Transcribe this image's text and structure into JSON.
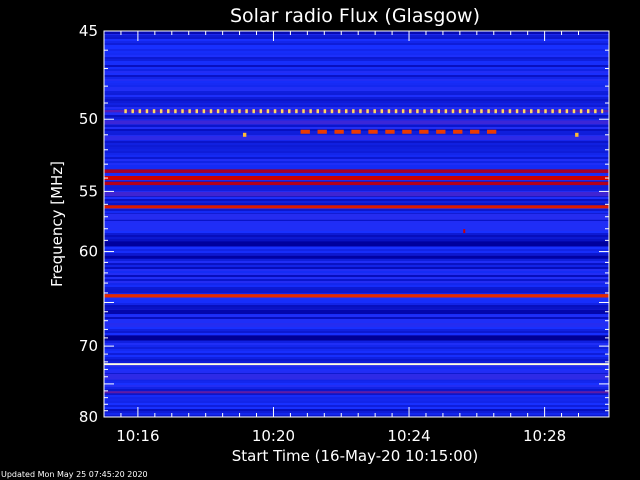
{
  "chart_data": {
    "type": "heatmap",
    "title": "Solar radio Flux (Glasgow)",
    "xlabel": "Start Time (16-May-20 10:15:00)",
    "ylabel": "Frequency [MHz]",
    "x_ticks": [
      "10:16",
      "10:20",
      "10:24",
      "10:28"
    ],
    "x_tick_minutes": [
      1,
      5,
      9,
      13
    ],
    "x_range_minutes": [
      0,
      14.9
    ],
    "y_ticks": [
      45,
      50,
      55,
      60,
      65,
      70,
      75,
      80
    ],
    "y_tick_labels": [
      "45",
      "50",
      "55",
      "60",
      "",
      "70",
      "",
      "80"
    ],
    "ylim": [
      80,
      45
    ],
    "y_scale": "reciprocal",
    "colormap": [
      "#000050",
      "#0000a0",
      "#1830ff",
      "#5020c0",
      "#a00030",
      "#d00000",
      "#ff6000",
      "#ffd040",
      "#ffffe0"
    ],
    "background_intensity": 0.22,
    "bands": [
      {
        "freq": 45.1,
        "width": 0.12,
        "intensity": 0.15
      },
      {
        "freq": 49.5,
        "width": 0.15,
        "intensity": 0.38
      },
      {
        "freq": 50.2,
        "width": 0.25,
        "intensity": 0.33
      },
      {
        "freq": 51.2,
        "width": 0.3,
        "intensity": 0.3
      },
      {
        "freq": 53.5,
        "width": 0.25,
        "intensity": 0.52
      },
      {
        "freq": 54.0,
        "width": 0.3,
        "intensity": 0.62
      },
      {
        "freq": 54.4,
        "width": 0.25,
        "intensity": 0.55
      },
      {
        "freq": 55.2,
        "width": 0.35,
        "intensity": 0.34
      },
      {
        "freq": 56.2,
        "width": 0.25,
        "intensity": 0.66
      },
      {
        "freq": 57.0,
        "width": 0.5,
        "intensity": 0.28
      },
      {
        "freq": 59.3,
        "width": 0.4,
        "intensity": 0.12
      },
      {
        "freq": 60.5,
        "width": 0.3,
        "intensity": 0.13
      },
      {
        "freq": 64.3,
        "width": 0.35,
        "intensity": 0.68
      },
      {
        "freq": 66.0,
        "width": 0.5,
        "intensity": 0.14
      },
      {
        "freq": 69.0,
        "width": 0.6,
        "intensity": 0.11
      },
      {
        "freq": 72.3,
        "width": 0.25,
        "intensity": 1.0
      },
      {
        "freq": 74.0,
        "width": 0.8,
        "intensity": 0.3
      },
      {
        "freq": 76.2,
        "width": 0.3,
        "intensity": 0.4
      }
    ],
    "bursts": [
      {
        "freq": 49.5,
        "t_start": 0.6,
        "t_end": 14.7,
        "period": 0.21,
        "duty": 0.35,
        "intensity": 0.9
      },
      {
        "freq": 50.8,
        "t_start": 5.8,
        "t_end": 11.6,
        "period": 0.5,
        "duty": 0.55,
        "intensity": 0.7
      },
      {
        "freq": 51.0,
        "t_start": 4.1,
        "t_end": 4.2,
        "period": 1,
        "duty": 1,
        "intensity": 0.85
      },
      {
        "freq": 51.0,
        "t_start": 13.9,
        "t_end": 14.0,
        "period": 1,
        "duty": 1,
        "intensity": 0.85
      },
      {
        "freq": 58.2,
        "t_start": 10.6,
        "t_end": 10.65,
        "period": 1,
        "duty": 1,
        "intensity": 0.6
      }
    ]
  },
  "footer": "Updated Mon May 25 07:45:20 2020"
}
